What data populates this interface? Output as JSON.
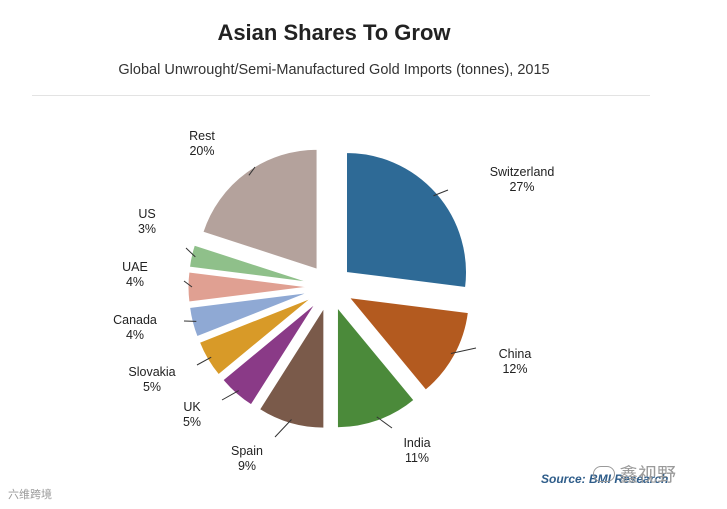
{
  "chart_data": {
    "type": "pie",
    "title": "Asian Shares To Grow",
    "subtitle": "Global Unwrought/Semi-Manufactured Gold Imports (tonnes), 2015",
    "unit": "%",
    "exploded": true,
    "slices": [
      {
        "label": "Switzerland",
        "value": 27,
        "value_label": "27%",
        "color": "#2e6a96"
      },
      {
        "label": "China",
        "value": 12,
        "value_label": "12%",
        "color": "#b35a1f"
      },
      {
        "label": "India",
        "value": 11,
        "value_label": "11%",
        "color": "#4b8a3a"
      },
      {
        "label": "Spain",
        "value": 9,
        "value_label": "9%",
        "color": "#7a5a4a"
      },
      {
        "label": "UK",
        "value": 5,
        "value_label": "5%",
        "color": "#8a3a87"
      },
      {
        "label": "Slovakia",
        "value": 5,
        "value_label": "5%",
        "color": "#d89a28"
      },
      {
        "label": "Canada",
        "value": 4,
        "value_label": "4%",
        "color": "#8fa9d4"
      },
      {
        "label": "UAE",
        "value": 4,
        "value_label": "4%",
        "color": "#e0a092"
      },
      {
        "label": "US",
        "value": 3,
        "value_label": "3%",
        "color": "#8fc08a"
      },
      {
        "label": "Rest",
        "value": 20,
        "value_label": "20%",
        "color": "#b4a29c"
      }
    ],
    "source": "Source: BMI Research"
  },
  "watermarks": {
    "right": "鑫视野",
    "left": "六维跨境"
  }
}
